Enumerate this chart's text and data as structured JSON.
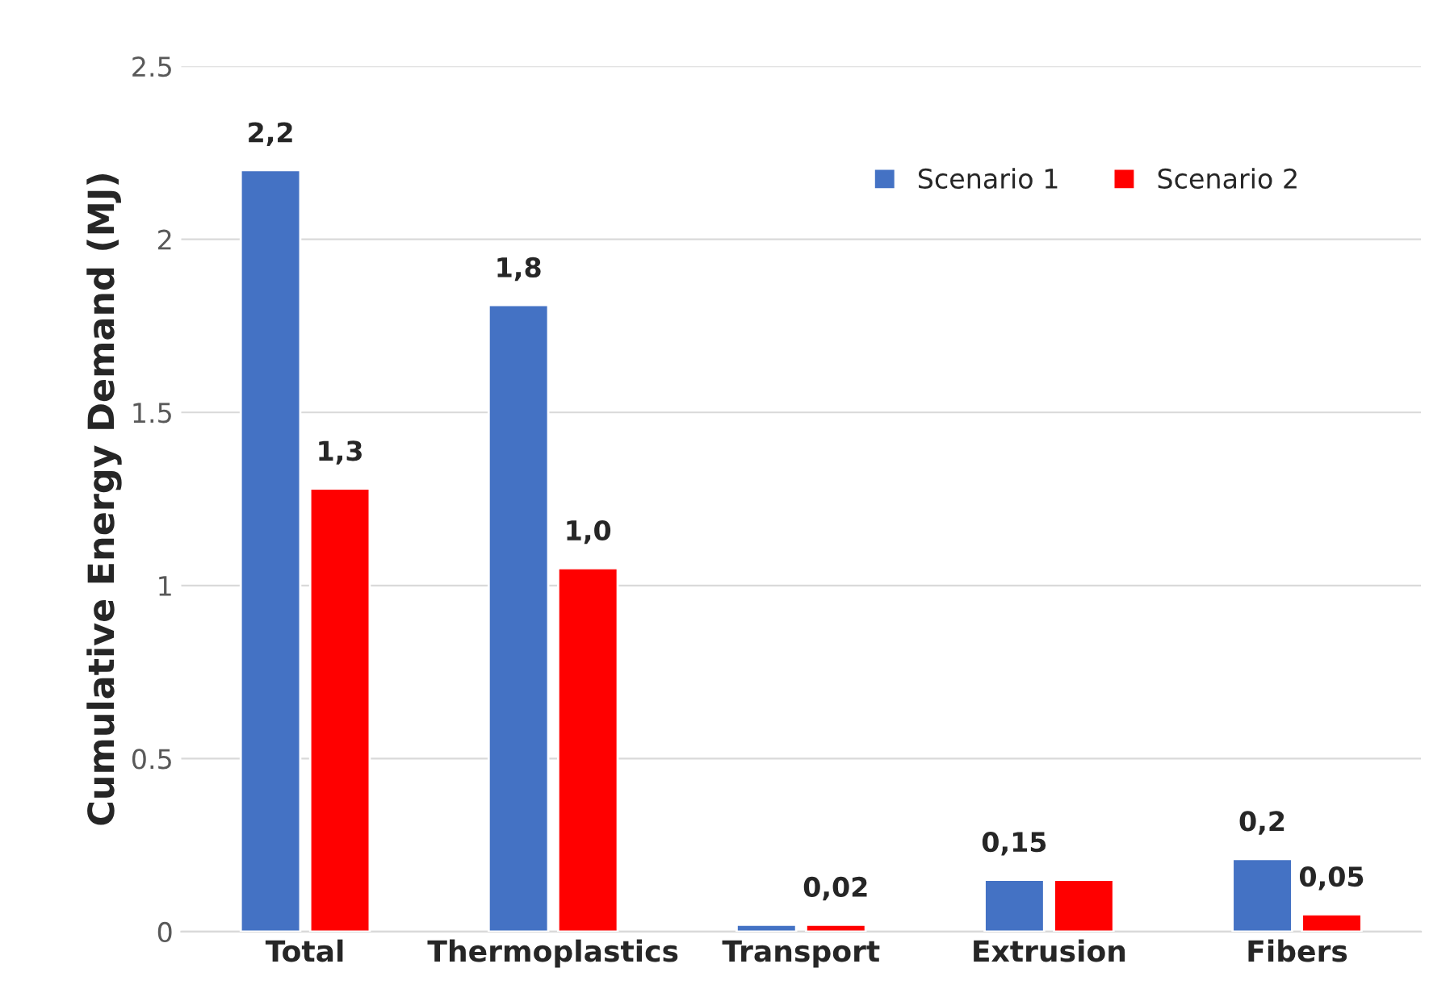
{
  "chart_data": {
    "type": "bar",
    "ylabel": "Cumulative Energy Demand (MJ)",
    "categories": [
      "Total",
      "Thermoplastics",
      "Transport",
      "Extrusion",
      "Fibers"
    ],
    "series": [
      {
        "name": "Scenario 1",
        "color": "#4472c4",
        "values": [
          2.2,
          1.81,
          0.02,
          0.15,
          0.21
        ],
        "value_labels": [
          "2,2",
          "1,8",
          null,
          "0,15",
          "0,2"
        ]
      },
      {
        "name": "Scenario 2",
        "color": "#ff0000",
        "values": [
          1.28,
          1.05,
          0.02,
          0.15,
          0.05
        ],
        "value_labels": [
          "1,3",
          "1,0",
          "0,02",
          null,
          "0,05"
        ]
      }
    ],
    "ylim": [
      0,
      2.5
    ],
    "yticks": [
      0,
      0.5,
      1,
      1.5,
      2,
      2.5
    ],
    "grid": "y",
    "legend": "top right"
  }
}
